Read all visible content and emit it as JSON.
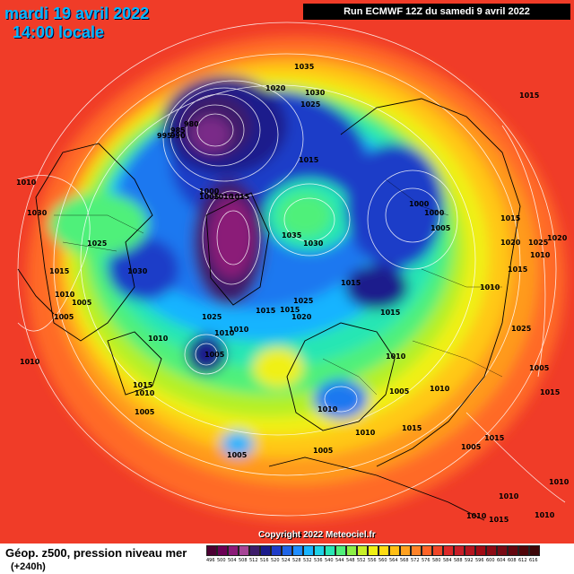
{
  "header": {
    "date": "mardi 19 avril 2022",
    "local_time": "14:00 locale",
    "run_info": "Run ECMWF 12Z du samedi 9 avril 2022"
  },
  "map": {
    "copyright": "Copyright 2022 Meteociel.fr",
    "pressure_labels": [
      "1035",
      "1020",
      "1030",
      "1025",
      "980",
      "985",
      "995",
      "990",
      "1015",
      "1010",
      "1000",
      "1005",
      "1015",
      "1010",
      "1025",
      "1030",
      "1035",
      "1030",
      "1000",
      "1000",
      "1005",
      "1015",
      "1030",
      "1025",
      "1015",
      "1010",
      "1015",
      "1020",
      "1010",
      "1015",
      "1025",
      "1010",
      "1015",
      "1010",
      "1005",
      "1005",
      "1005",
      "1010",
      "1010",
      "1015",
      "1005",
      "1005",
      "1010",
      "1015",
      "1010",
      "1005",
      "1005",
      "1010",
      "1010",
      "1015",
      "1020",
      "1025",
      "1015",
      "1010",
      "1015",
      "1025",
      "1015",
      "1020",
      "1015",
      "1010",
      "1005",
      "1010",
      "1015",
      "1005",
      "1010",
      "1015",
      "1010",
      "1010"
    ]
  },
  "legend": {
    "title": "Géop. z500, pression niveau mer",
    "subtitle": "(+240h)",
    "scale_values": [
      "496",
      "500",
      "504",
      "508",
      "512",
      "516",
      "520",
      "524",
      "528",
      "532",
      "536",
      "540",
      "544",
      "548",
      "552",
      "556",
      "560",
      "564",
      "568",
      "572",
      "576",
      "580",
      "584",
      "588",
      "592",
      "596",
      "600",
      "604",
      "608",
      "612",
      "616"
    ],
    "scale_colors": [
      "#4b0033",
      "#6b0055",
      "#8b1a78",
      "#a64596",
      "#3d1d6b",
      "#1a1a8c",
      "#1e3cc8",
      "#1f64e6",
      "#1e8cff",
      "#19b4ff",
      "#1fd2e6",
      "#28e6b4",
      "#50f07a",
      "#8cf046",
      "#c8f028",
      "#f0f014",
      "#ffdc14",
      "#ffbe14",
      "#ffa01e",
      "#ff8228",
      "#ff6428",
      "#f04628",
      "#dc2828",
      "#c81e28",
      "#b4141e",
      "#a00a14",
      "#8c0a14",
      "#780a14",
      "#64060f",
      "#50060a",
      "#3c0608"
    ]
  }
}
